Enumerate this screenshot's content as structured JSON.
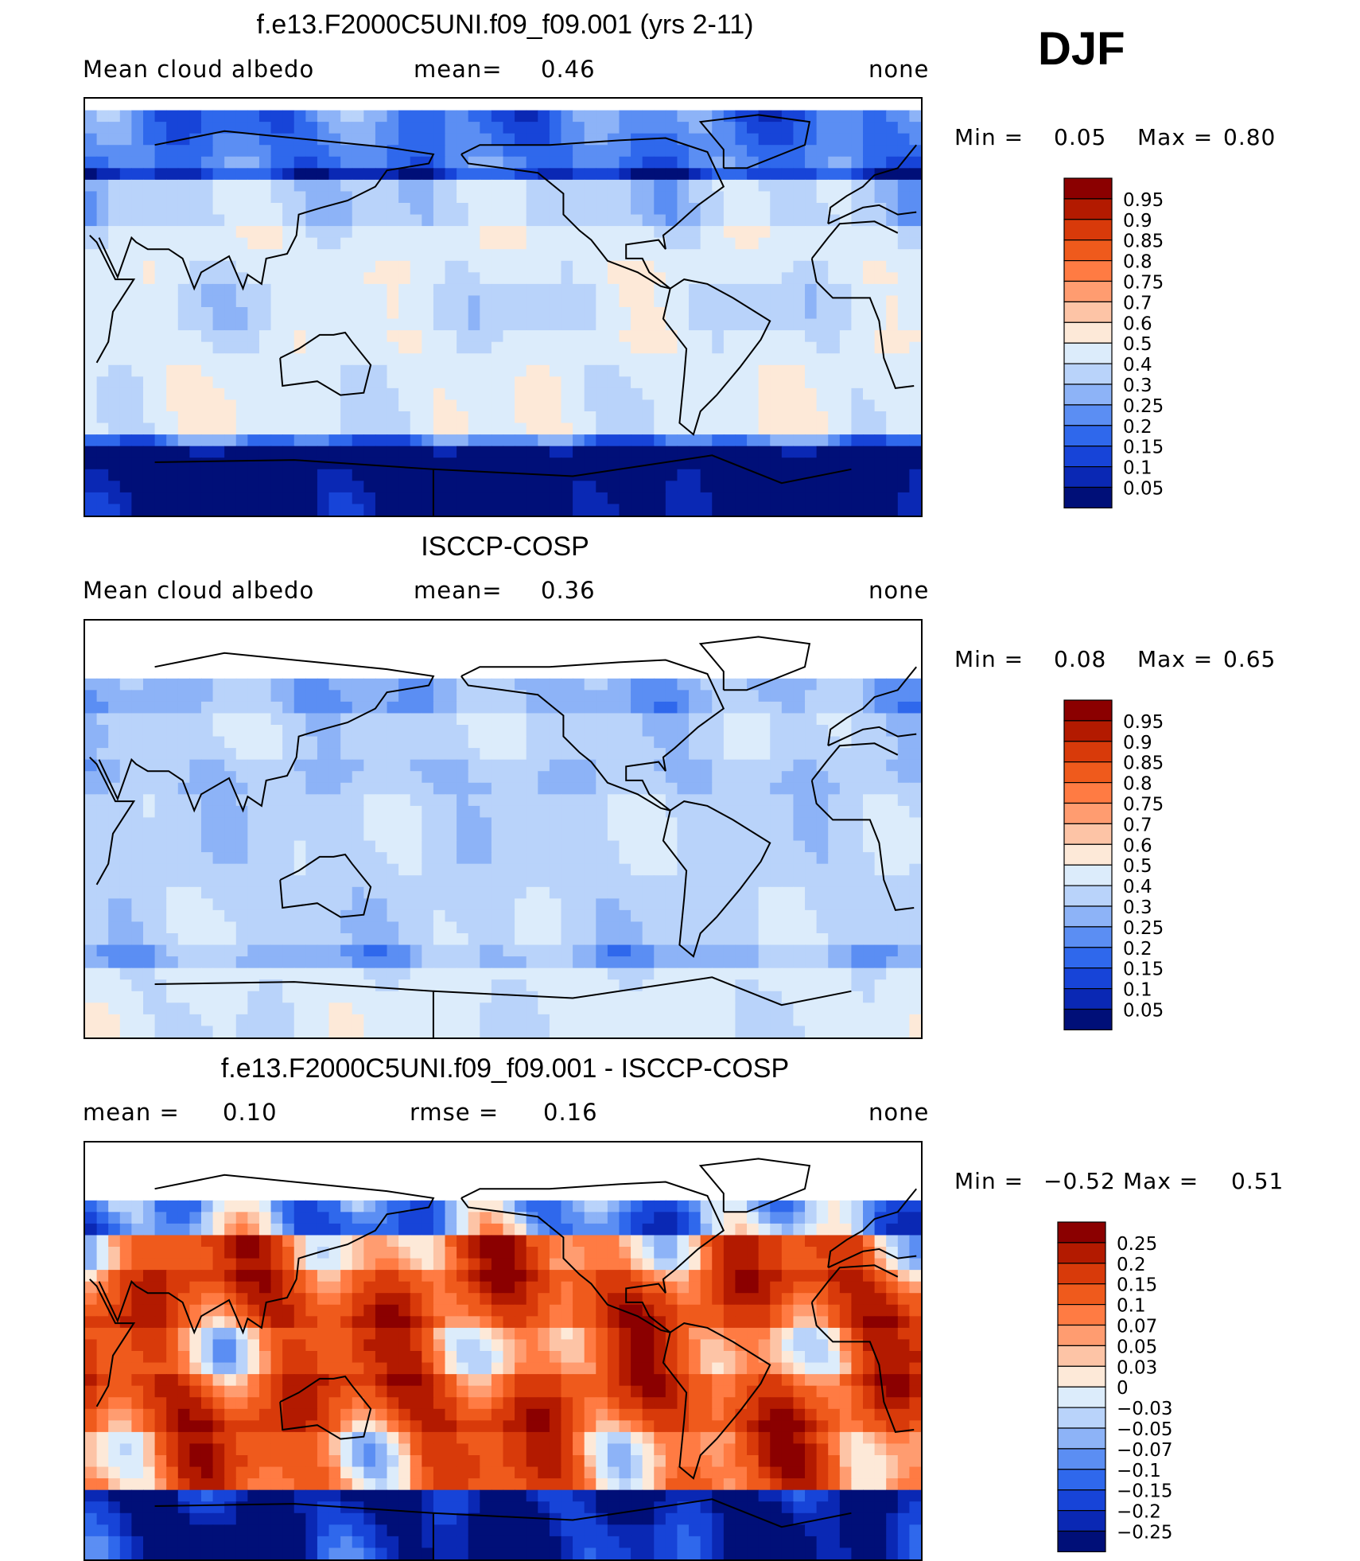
{
  "season": "DJF",
  "panels": [
    {
      "title": "f.e13.F2000C5UNI.f09_f09.001 (yrs 2-11)",
      "left_label": "Mean cloud albedo",
      "mid_label": "mean=",
      "mid_value": "0.46",
      "right_label": "none",
      "min_label": "Min =",
      "min_value": "0.05",
      "max_label": "Max =",
      "max_value": "0.80"
    },
    {
      "title": "ISCCP-COSP",
      "left_label": "Mean cloud albedo",
      "mid_label": "mean=",
      "mid_value": "0.36",
      "right_label": "none",
      "min_label": "Min =",
      "min_value": "0.08",
      "max_label": "Max =",
      "max_value": "0.65"
    },
    {
      "title": "f.e13.F2000C5UNI.f09_f09.001 - ISCCP-COSP",
      "left_label": "mean =",
      "left_value": "0.10",
      "mid_label": "rmse =",
      "mid_value": "0.16",
      "right_label": "none",
      "min_label": "Min =",
      "min_value": "−0.52",
      "max_label": "Max =",
      "max_value": "0.51"
    }
  ],
  "chart_data": [
    {
      "type": "heatmap",
      "title": "f.e13.F2000C5UNI.f09_f09.001 (yrs 2-11)",
      "variable": "Mean cloud albedo",
      "units": "none",
      "mean": 0.46,
      "min": 0.05,
      "max": 0.8,
      "colorbar_levels": [
        "0.95",
        "0.9",
        "0.85",
        "0.8",
        "0.75",
        "0.7",
        "0.6",
        "0.5",
        "0.4",
        "0.3",
        "0.25",
        "0.2",
        "0.15",
        "0.1",
        "0.05"
      ],
      "colorbar_colors": [
        "#8b0000",
        "#b31a00",
        "#d83a0a",
        "#ef5a1c",
        "#ff7b43",
        "#ff9c70",
        "#fdc4a6",
        "#fde9d8",
        "#dcecfb",
        "#b9d3fa",
        "#8db3f7",
        "#5b8ef3",
        "#2f68ec",
        "#1744d8",
        "#0a28b4",
        "#000f78"
      ]
    },
    {
      "type": "heatmap",
      "title": "ISCCP-COSP",
      "variable": "Mean cloud albedo",
      "units": "none",
      "mean": 0.36,
      "min": 0.08,
      "max": 0.65,
      "colorbar_levels": [
        "0.95",
        "0.9",
        "0.85",
        "0.8",
        "0.75",
        "0.7",
        "0.6",
        "0.5",
        "0.4",
        "0.3",
        "0.25",
        "0.2",
        "0.15",
        "0.1",
        "0.05"
      ],
      "colorbar_colors": [
        "#8b0000",
        "#b31a00",
        "#d83a0a",
        "#ef5a1c",
        "#ff7b43",
        "#ff9c70",
        "#fdc4a6",
        "#fde9d8",
        "#dcecfb",
        "#b9d3fa",
        "#8db3f7",
        "#5b8ef3",
        "#2f68ec",
        "#1744d8",
        "#0a28b4",
        "#000f78"
      ]
    },
    {
      "type": "heatmap",
      "title": "f.e13.F2000C5UNI.f09_f09.001 - ISCCP-COSP",
      "units": "none",
      "mean": 0.1,
      "rmse": 0.16,
      "min": -0.52,
      "max": 0.51,
      "colorbar_levels": [
        "0.25",
        "0.2",
        "0.15",
        "0.1",
        "0.07",
        "0.05",
        "0.03",
        "0",
        "−0.03",
        "−0.05",
        "−0.07",
        "−0.1",
        "−0.15",
        "−0.2",
        "−0.25"
      ],
      "colorbar_colors": [
        "#8b0000",
        "#b31a00",
        "#d83a0a",
        "#ef5a1c",
        "#ff7b43",
        "#ff9c70",
        "#fdc4a6",
        "#fde9d8",
        "#dcecfb",
        "#b9d3fa",
        "#8db3f7",
        "#5b8ef3",
        "#2f68ec",
        "#1744d8",
        "#0a28b4",
        "#000f78"
      ]
    }
  ]
}
